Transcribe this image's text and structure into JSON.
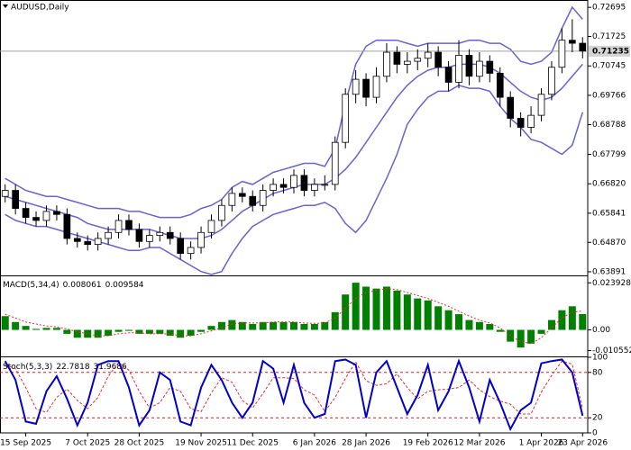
{
  "chart_data": [
    {
      "type": "candlestick",
      "title": "AUDUSD,Daily",
      "categories": [
        null,
        null,
        "15 Sep 2025",
        null,
        null,
        null,
        null,
        null,
        "7 Oct 2025",
        null,
        null,
        null,
        null,
        "28 Oct 2025",
        null,
        null,
        null,
        null,
        null,
        "19 Nov 2025",
        null,
        null,
        null,
        null,
        "11 Dec 2025",
        null,
        null,
        null,
        null,
        null,
        "6 Jan 2026",
        null,
        null,
        null,
        null,
        "28 Jan 2026",
        null,
        null,
        null,
        null,
        null,
        "19 Feb 2026",
        null,
        null,
        null,
        null,
        "12 Mar 2026",
        null,
        null,
        null,
        null,
        null,
        "1 Apr 2026",
        null,
        null,
        null,
        "23 Apr 2026"
      ],
      "open": [
        0.664,
        0.666,
        0.66,
        0.657,
        0.656,
        0.659,
        0.658,
        0.65,
        0.649,
        0.648,
        0.65,
        0.652,
        0.656,
        0.653,
        0.649,
        0.651,
        0.652,
        0.65,
        0.645,
        0.647,
        0.652,
        0.656,
        0.661,
        0.665,
        0.664,
        0.661,
        0.666,
        0.668,
        0.667,
        0.671,
        0.666,
        0.668,
        0.668,
        0.682,
        0.698,
        0.703,
        0.697,
        0.704,
        0.712,
        0.708,
        0.709,
        0.71,
        0.712,
        0.707,
        0.702,
        0.711,
        0.704,
        0.709,
        0.705,
        0.697,
        0.69,
        0.687,
        0.691,
        0.698,
        0.707,
        0.716,
        0.715
      ],
      "high": [
        0.668,
        0.668,
        0.662,
        0.659,
        0.661,
        0.661,
        0.66,
        0.652,
        0.651,
        0.652,
        0.654,
        0.658,
        0.658,
        0.655,
        0.653,
        0.654,
        0.654,
        0.652,
        0.649,
        0.654,
        0.658,
        0.663,
        0.667,
        0.667,
        0.666,
        0.668,
        0.67,
        0.67,
        0.673,
        0.673,
        0.67,
        0.671,
        0.684,
        0.7,
        0.706,
        0.705,
        0.707,
        0.715,
        0.714,
        0.712,
        0.713,
        0.715,
        0.714,
        0.709,
        0.716,
        0.713,
        0.712,
        0.711,
        0.707,
        0.699,
        0.692,
        0.694,
        0.7,
        0.709,
        0.72,
        0.723,
        0.717
      ],
      "low": [
        0.662,
        0.658,
        0.655,
        0.654,
        0.654,
        0.656,
        0.648,
        0.647,
        0.646,
        0.646,
        0.648,
        0.65,
        0.651,
        0.647,
        0.647,
        0.649,
        0.648,
        0.643,
        0.643,
        0.645,
        0.65,
        0.654,
        0.659,
        0.662,
        0.659,
        0.659,
        0.664,
        0.665,
        0.665,
        0.664,
        0.664,
        0.666,
        0.666,
        0.68,
        0.695,
        0.694,
        0.695,
        0.702,
        0.705,
        0.705,
        0.706,
        0.707,
        0.704,
        0.699,
        0.7,
        0.701,
        0.702,
        0.702,
        0.694,
        0.687,
        0.684,
        0.685,
        0.689,
        0.696,
        0.705,
        0.712,
        0.71
      ],
      "close": [
        0.666,
        0.66,
        0.657,
        0.656,
        0.659,
        0.658,
        0.65,
        0.649,
        0.648,
        0.65,
        0.652,
        0.656,
        0.653,
        0.649,
        0.651,
        0.652,
        0.65,
        0.645,
        0.647,
        0.652,
        0.656,
        0.661,
        0.665,
        0.664,
        0.661,
        0.666,
        0.668,
        0.667,
        0.671,
        0.666,
        0.668,
        0.668,
        0.682,
        0.698,
        0.703,
        0.697,
        0.704,
        0.712,
        0.708,
        0.709,
        0.71,
        0.712,
        0.707,
        0.702,
        0.711,
        0.704,
        0.709,
        0.705,
        0.697,
        0.69,
        0.687,
        0.691,
        0.698,
        0.707,
        0.716,
        0.715,
        0.7124
      ],
      "bands": {
        "upper": [
          0.67,
          0.668,
          0.666,
          0.665,
          0.664,
          0.664,
          0.663,
          0.662,
          0.661,
          0.66,
          0.66,
          0.66,
          0.659,
          0.659,
          0.658,
          0.657,
          0.657,
          0.657,
          0.658,
          0.66,
          0.661,
          0.663,
          0.667,
          0.669,
          0.668,
          0.67,
          0.672,
          0.673,
          0.674,
          0.675,
          0.675,
          0.674,
          0.68,
          0.695,
          0.708,
          0.714,
          0.716,
          0.716,
          0.716,
          0.715,
          0.714,
          0.715,
          0.715,
          0.715,
          0.715,
          0.716,
          0.716,
          0.715,
          0.715,
          0.713,
          0.709,
          0.708,
          0.709,
          0.712,
          0.72,
          0.727,
          0.723
        ],
        "middle": [
          0.664,
          0.663,
          0.662,
          0.661,
          0.66,
          0.659,
          0.658,
          0.657,
          0.655,
          0.654,
          0.653,
          0.653,
          0.653,
          0.653,
          0.653,
          0.652,
          0.651,
          0.65,
          0.65,
          0.65,
          0.651,
          0.653,
          0.656,
          0.659,
          0.661,
          0.663,
          0.665,
          0.666,
          0.667,
          0.668,
          0.668,
          0.668,
          0.67,
          0.673,
          0.677,
          0.682,
          0.687,
          0.692,
          0.697,
          0.701,
          0.704,
          0.706,
          0.707,
          0.707,
          0.708,
          0.708,
          0.708,
          0.707,
          0.705,
          0.702,
          0.699,
          0.697,
          0.696,
          0.697,
          0.7,
          0.704,
          0.708
        ],
        "lower": [
          0.658,
          0.656,
          0.655,
          0.654,
          0.654,
          0.653,
          0.652,
          0.651,
          0.65,
          0.649,
          0.648,
          0.647,
          0.646,
          0.646,
          0.647,
          0.647,
          0.645,
          0.643,
          0.641,
          0.639,
          0.638,
          0.639,
          0.645,
          0.65,
          0.654,
          0.656,
          0.658,
          0.659,
          0.66,
          0.661,
          0.661,
          0.662,
          0.66,
          0.655,
          0.652,
          0.656,
          0.663,
          0.67,
          0.678,
          0.688,
          0.693,
          0.697,
          0.699,
          0.699,
          0.701,
          0.7,
          0.7,
          0.699,
          0.694,
          0.69,
          0.687,
          0.683,
          0.682,
          0.68,
          0.678,
          0.681,
          0.692
        ]
      },
      "band_color": "#6a62d0",
      "up_color": "#ffffff",
      "down_color": "#000000",
      "current_price": 0.71235,
      "ylim": [
        0.6377,
        0.7294
      ],
      "yticks": [
        0.72695,
        0.71725,
        0.70745,
        0.69766,
        0.68788,
        0.67799,
        {
          "value": 0.6682,
          "label": "0.66820"
        },
        0.65841,
        {
          "value": 0.6487,
          "label": "0.64870"
        },
        0.63891
      ]
    },
    {
      "type": "bar",
      "title": "MACD(5,34,4)",
      "values": [
        0.007,
        0.004,
        0.002,
        0.0005,
        0.001,
        0.001,
        -0.002,
        -0.004,
        -0.004,
        -0.004,
        -0.003,
        -0.001,
        -0.0005,
        -0.002,
        -0.002,
        -0.002,
        -0.003,
        -0.004,
        -0.003,
        -0.001,
        0.002,
        0.004,
        0.005,
        0.004,
        0.003,
        0.004,
        0.004,
        0.004,
        0.004,
        0.003,
        0.003,
        0.004,
        0.009,
        0.018,
        0.024,
        0.022,
        0.021,
        0.022,
        0.02,
        0.018,
        0.016,
        0.015,
        0.012,
        0.01,
        0.008,
        0.005,
        0.004,
        0.003,
        -0.001,
        -0.006,
        -0.009,
        -0.007,
        -0.002,
        0.005,
        0.01,
        0.012,
        0.008061
      ],
      "signal": [
        0.008,
        0.006,
        0.004,
        0.003,
        0.002,
        0.0015,
        0.0005,
        -0.001,
        -0.002,
        -0.003,
        -0.003,
        -0.002,
        -0.0015,
        -0.0015,
        -0.002,
        -0.002,
        -0.002,
        -0.003,
        -0.003,
        -0.002,
        -0.0005,
        0.001,
        0.003,
        0.0035,
        0.0035,
        0.0035,
        0.004,
        0.004,
        0.004,
        0.0035,
        0.0033,
        0.0035,
        0.006,
        0.011,
        0.016,
        0.019,
        0.02,
        0.021,
        0.0205,
        0.019,
        0.0175,
        0.016,
        0.014,
        0.012,
        0.0095,
        0.007,
        0.005,
        0.0035,
        0.001,
        -0.003,
        -0.006,
        -0.007,
        -0.004,
        0.001,
        0.006,
        0.009,
        0.009584
      ],
      "color": "#008000",
      "signal_color": "#e03030",
      "ylim": [
        -0.0135,
        0.0268
      ],
      "yticks": [
        0.023928,
        {
          "value": 0,
          "label": "0.00"
        },
        -0.010552
      ]
    },
    {
      "type": "line",
      "title": "Stoch(5,3,3)",
      "k": [
        95,
        70,
        15,
        12,
        55,
        75,
        45,
        10,
        40,
        90,
        95,
        95,
        60,
        10,
        30,
        80,
        70,
        15,
        10,
        60,
        90,
        70,
        40,
        20,
        40,
        95,
        85,
        40,
        90,
        40,
        20,
        25,
        95,
        97,
        90,
        20,
        80,
        95,
        60,
        25,
        50,
        90,
        30,
        55,
        95,
        60,
        15,
        70,
        40,
        5,
        30,
        40,
        92,
        95,
        97,
        80,
        22.7818
      ],
      "d": [
        90,
        85,
        60,
        32,
        27,
        47,
        58,
        43,
        32,
        47,
        75,
        93,
        83,
        55,
        33,
        40,
        60,
        55,
        32,
        28,
        53,
        73,
        67,
        43,
        33,
        52,
        73,
        73,
        72,
        57,
        50,
        28,
        47,
        72,
        94,
        69,
        63,
        65,
        78,
        60,
        45,
        55,
        57,
        58,
        60,
        70,
        57,
        48,
        42,
        38,
        25,
        25,
        54,
        76,
        95,
        91,
        31.9686
      ],
      "k_color": "#0000c8",
      "d_color": "#e03030",
      "levels": [
        80,
        20
      ],
      "level_color": "#d02020",
      "ylim": [
        0,
        100
      ],
      "yticks": [
        100,
        80,
        20,
        0
      ]
    }
  ]
}
